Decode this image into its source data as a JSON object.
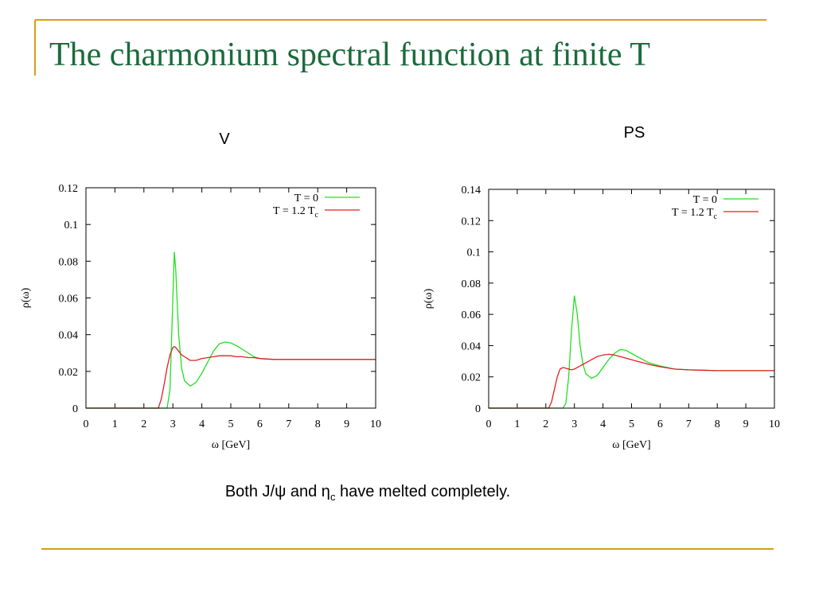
{
  "slide": {
    "title": "The charmonium spectral function at finite T",
    "caption": {
      "before": "Both J/ψ and η",
      "sub": "c",
      "after": " have melted completely."
    }
  },
  "chart_data": [
    {
      "type": "line",
      "title": "V",
      "xlabel": "ω [GeV]",
      "ylabel": "ρ(ω)",
      "x": [
        0,
        1,
        2,
        2.5,
        2.6,
        2.7,
        2.8,
        2.9,
        3.0,
        3.05,
        3.1,
        3.2,
        3.3,
        3.4,
        3.6,
        3.8,
        4.0,
        4.2,
        4.4,
        4.6,
        4.8,
        5.0,
        5.2,
        5.4,
        5.6,
        5.8,
        6.0,
        6.5,
        7,
        8,
        9,
        10
      ],
      "series": [
        {
          "name": "T = 0",
          "color": "#22e022",
          "values": [
            0,
            0,
            0,
            0,
            0,
            0,
            0,
            0.01,
            0.06,
            0.085,
            0.075,
            0.04,
            0.022,
            0.015,
            0.012,
            0.014,
            0.019,
            0.025,
            0.031,
            0.035,
            0.036,
            0.0355,
            0.034,
            0.032,
            0.03,
            0.028,
            0.027,
            0.0265,
            0.0265,
            0.0265,
            0.0265,
            0.0265
          ]
        },
        {
          "name": "T = 1.2 T",
          "name_sub": "c",
          "color": "#e02020",
          "values": [
            0,
            0,
            0,
            0,
            0.005,
            0.013,
            0.022,
            0.029,
            0.033,
            0.0335,
            0.033,
            0.031,
            0.029,
            0.028,
            0.026,
            0.026,
            0.027,
            0.0275,
            0.028,
            0.0285,
            0.0285,
            0.0285,
            0.028,
            0.028,
            0.0275,
            0.0275,
            0.027,
            0.0265,
            0.0265,
            0.0265,
            0.0265,
            0.0265
          ]
        }
      ],
      "xlim": [
        0,
        10
      ],
      "xticks": [
        0,
        1,
        2,
        3,
        4,
        5,
        6,
        7,
        8,
        9,
        10
      ],
      "ylim": [
        0,
        0.12
      ],
      "yticks": [
        0,
        0.02,
        0.04,
        0.06,
        0.08,
        0.1,
        0.12
      ],
      "legend": "upper right"
    },
    {
      "type": "line",
      "title": "PS",
      "xlabel": "ω [GeV]",
      "ylabel": "ρ(ω)",
      "x": [
        0,
        1,
        2,
        2.1,
        2.2,
        2.3,
        2.4,
        2.5,
        2.6,
        2.7,
        2.8,
        2.9,
        3.0,
        3.1,
        3.2,
        3.3,
        3.4,
        3.6,
        3.8,
        4.0,
        4.2,
        4.4,
        4.6,
        4.8,
        5.0,
        5.2,
        5.4,
        5.6,
        6.0,
        6.5,
        7,
        8,
        9,
        10
      ],
      "series": [
        {
          "name": "T = 0",
          "color": "#22e022",
          "values": [
            0,
            0,
            0,
            0,
            0,
            0,
            0,
            0,
            0,
            0.003,
            0.02,
            0.05,
            0.072,
            0.06,
            0.04,
            0.028,
            0.022,
            0.019,
            0.021,
            0.026,
            0.031,
            0.035,
            0.0375,
            0.037,
            0.035,
            0.033,
            0.031,
            0.029,
            0.027,
            0.025,
            0.0245,
            0.024,
            0.024,
            0.024
          ]
        },
        {
          "name": "T = 1.2 T",
          "name_sub": "c",
          "color": "#e02020",
          "values": [
            0,
            0,
            0,
            0,
            0.004,
            0.012,
            0.02,
            0.025,
            0.026,
            0.0255,
            0.025,
            0.0245,
            0.025,
            0.026,
            0.027,
            0.028,
            0.029,
            0.031,
            0.033,
            0.034,
            0.0345,
            0.034,
            0.033,
            0.032,
            0.031,
            0.03,
            0.029,
            0.028,
            0.0265,
            0.025,
            0.0245,
            0.024,
            0.024,
            0.024
          ]
        }
      ],
      "xlim": [
        0,
        10
      ],
      "xticks": [
        0,
        1,
        2,
        3,
        4,
        5,
        6,
        7,
        8,
        9,
        10
      ],
      "ylim": [
        0,
        0.14
      ],
      "yticks": [
        0,
        0.02,
        0.04,
        0.06,
        0.08,
        0.1,
        0.12,
        0.14
      ],
      "legend": "upper right"
    }
  ]
}
